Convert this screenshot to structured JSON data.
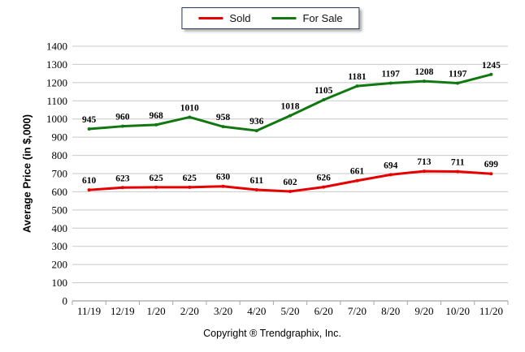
{
  "legend": {
    "items": [
      {
        "label": "Sold",
        "color": "#e60000"
      },
      {
        "label": "For Sale",
        "color": "#117711"
      }
    ]
  },
  "footer": {
    "copyright": "Copyright ® Trendgraphix, Inc."
  },
  "chart_data": {
    "type": "line",
    "title": "",
    "categories": [
      "11/19",
      "12/19",
      "1/20",
      "2/20",
      "3/20",
      "4/20",
      "5/20",
      "6/20",
      "7/20",
      "8/20",
      "9/20",
      "10/20",
      "11/20"
    ],
    "series": [
      {
        "name": "Sold",
        "color": "#e60000",
        "values": [
          610,
          623,
          625,
          625,
          630,
          611,
          602,
          626,
          661,
          694,
          713,
          711,
          699
        ]
      },
      {
        "name": "For Sale",
        "color": "#117711",
        "values": [
          945,
          960,
          968,
          1010,
          958,
          936,
          1018,
          1105,
          1181,
          1197,
          1208,
          1197,
          1245
        ]
      }
    ],
    "xlabel": "",
    "ylabel": "Average Price (in $,000)",
    "ylim": [
      0,
      1400
    ],
    "ytick_step": 100,
    "grid": true,
    "legend_position": "top-center",
    "colors": {
      "gridline": "#c9c9c9",
      "axis_line": "#8c8c8c",
      "tick": "#a6a6a6",
      "label_text": "#000000"
    }
  }
}
